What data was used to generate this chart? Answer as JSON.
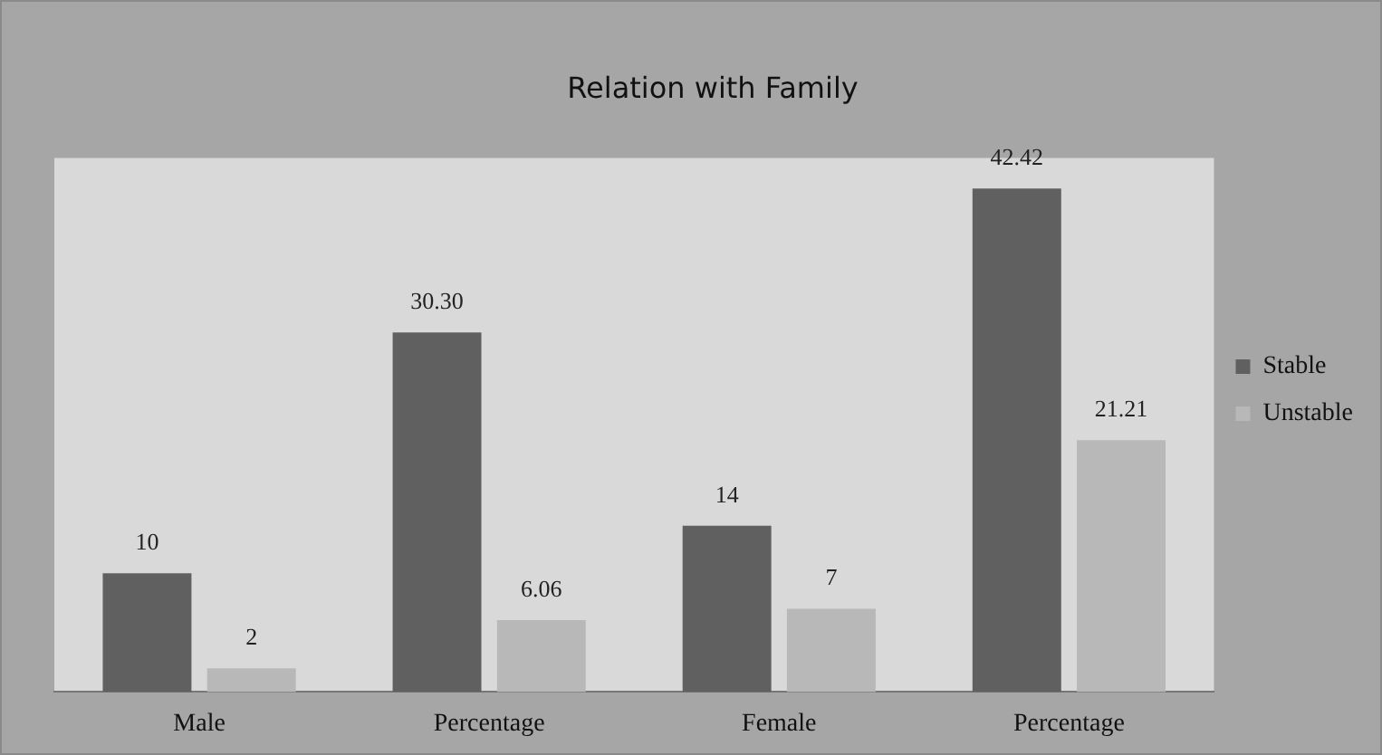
{
  "chart_data": {
    "type": "bar",
    "title": "Relation with Family",
    "categories": [
      "Male",
      "Percentage",
      "Female",
      "Percentage"
    ],
    "series": [
      {
        "name": "Stable",
        "color": "#606060",
        "values": [
          10,
          30.3,
          14,
          42.42
        ],
        "value_labels": [
          "10",
          "30.30",
          "14",
          "42.42"
        ]
      },
      {
        "name": "Unstable",
        "color": "#b8b8b8",
        "values": [
          2,
          6.06,
          7,
          21.21
        ],
        "value_labels": [
          "2",
          "6.06",
          "7",
          "21.21"
        ]
      }
    ],
    "legend": "right",
    "grid": false
  }
}
